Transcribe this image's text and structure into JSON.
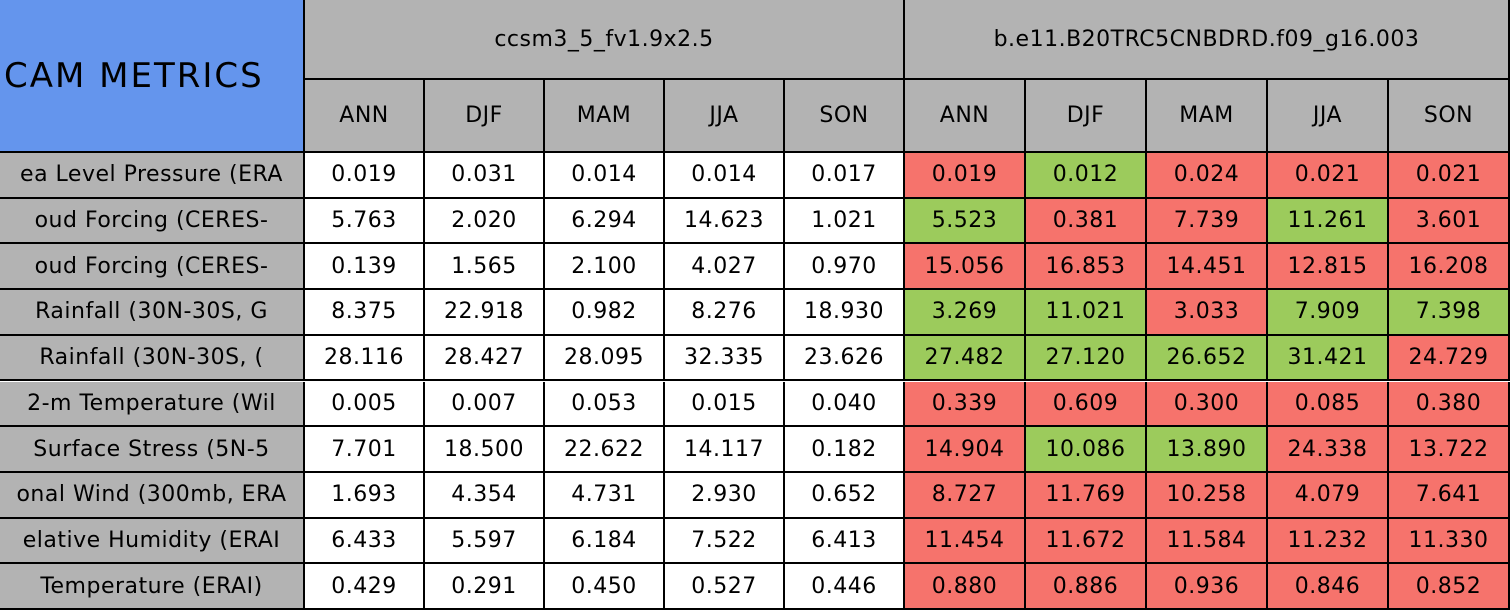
{
  "table": {
    "corner": "CAM METRICS",
    "models": [
      "ccsm3_5_fv1.9x2.5",
      "b.e11.B20TRC5CNBDRD.f09_g16.003"
    ],
    "seasons": [
      "ANN",
      "DJF",
      "MAM",
      "JJA",
      "SON"
    ],
    "rows": [
      {
        "label": "ea Level Pressure (ERA",
        "values": [
          "0.019",
          "0.031",
          "0.014",
          "0.014",
          "0.017",
          "0.019",
          "0.012",
          "0.024",
          "0.021",
          "0.021"
        ],
        "colors": [
          "#ffffff",
          "#ffffff",
          "#ffffff",
          "#ffffff",
          "#ffffff",
          "#f6736c",
          "#9ccb5c",
          "#f6736c",
          "#f6736c",
          "#f6736c"
        ]
      },
      {
        "label": "oud Forcing (CERES-",
        "values": [
          "5.763",
          "2.020",
          "6.294",
          "14.623",
          "1.021",
          "5.523",
          "0.381",
          "7.739",
          "11.261",
          "3.601"
        ],
        "colors": [
          "#ffffff",
          "#ffffff",
          "#ffffff",
          "#ffffff",
          "#ffffff",
          "#9ccb5c",
          "#f6736c",
          "#f6736c",
          "#9ccb5c",
          "#f6736c"
        ]
      },
      {
        "label": "oud Forcing (CERES-",
        "values": [
          "0.139",
          "1.565",
          "2.100",
          "4.027",
          "0.970",
          "15.056",
          "16.853",
          "14.451",
          "12.815",
          "16.208"
        ],
        "colors": [
          "#ffffff",
          "#ffffff",
          "#ffffff",
          "#ffffff",
          "#ffffff",
          "#f6736c",
          "#f6736c",
          "#f6736c",
          "#f6736c",
          "#f6736c"
        ]
      },
      {
        "label": "Rainfall (30N-30S, G",
        "values": [
          "8.375",
          "22.918",
          "0.982",
          "8.276",
          "18.930",
          "3.269",
          "11.021",
          "3.033",
          "7.909",
          "7.398"
        ],
        "colors": [
          "#ffffff",
          "#ffffff",
          "#ffffff",
          "#ffffff",
          "#ffffff",
          "#9ccb5c",
          "#9ccb5c",
          "#f6736c",
          "#9ccb5c",
          "#9ccb5c"
        ]
      },
      {
        "label": "Rainfall (30N-30S, (",
        "values": [
          "28.116",
          "28.427",
          "28.095",
          "32.335",
          "23.626",
          "27.482",
          "27.120",
          "26.652",
          "31.421",
          "24.729"
        ],
        "colors": [
          "#ffffff",
          "#ffffff",
          "#ffffff",
          "#ffffff",
          "#ffffff",
          "#9ccb5c",
          "#9ccb5c",
          "#9ccb5c",
          "#9ccb5c",
          "#f6736c"
        ]
      },
      {
        "label": "2-m Temperature (Wil",
        "values": [
          "0.005",
          "0.007",
          "0.053",
          "0.015",
          "0.040",
          "0.339",
          "0.609",
          "0.300",
          "0.085",
          "0.380"
        ],
        "colors": [
          "#ffffff",
          "#ffffff",
          "#ffffff",
          "#ffffff",
          "#ffffff",
          "#f6736c",
          "#f6736c",
          "#f6736c",
          "#f6736c",
          "#f6736c"
        ]
      },
      {
        "label": "Surface Stress (5N-5",
        "values": [
          "7.701",
          "18.500",
          "22.622",
          "14.117",
          "0.182",
          "14.904",
          "10.086",
          "13.890",
          "24.338",
          "13.722"
        ],
        "colors": [
          "#ffffff",
          "#ffffff",
          "#ffffff",
          "#ffffff",
          "#ffffff",
          "#f6736c",
          "#9ccb5c",
          "#9ccb5c",
          "#f6736c",
          "#f6736c"
        ]
      },
      {
        "label": "onal Wind (300mb, ERA",
        "values": [
          "1.693",
          "4.354",
          "4.731",
          "2.930",
          "0.652",
          "8.727",
          "11.769",
          "10.258",
          "4.079",
          "7.641"
        ],
        "colors": [
          "#ffffff",
          "#ffffff",
          "#ffffff",
          "#ffffff",
          "#ffffff",
          "#f6736c",
          "#f6736c",
          "#f6736c",
          "#f6736c",
          "#f6736c"
        ]
      },
      {
        "label": "elative Humidity (ERAI",
        "values": [
          "6.433",
          "5.597",
          "6.184",
          "7.522",
          "6.413",
          "11.454",
          "11.672",
          "11.584",
          "11.232",
          "11.330"
        ],
        "colors": [
          "#ffffff",
          "#ffffff",
          "#ffffff",
          "#ffffff",
          "#ffffff",
          "#f6736c",
          "#f6736c",
          "#f6736c",
          "#f6736c",
          "#f6736c"
        ]
      },
      {
        "label": "Temperature (ERAI)",
        "values": [
          "0.429",
          "0.291",
          "0.450",
          "0.527",
          "0.446",
          "0.880",
          "0.886",
          "0.936",
          "0.846",
          "0.852"
        ],
        "colors": [
          "#ffffff",
          "#ffffff",
          "#ffffff",
          "#ffffff",
          "#ffffff",
          "#f6736c",
          "#f6736c",
          "#f6736c",
          "#f6736c",
          "#f6736c"
        ]
      }
    ]
  }
}
